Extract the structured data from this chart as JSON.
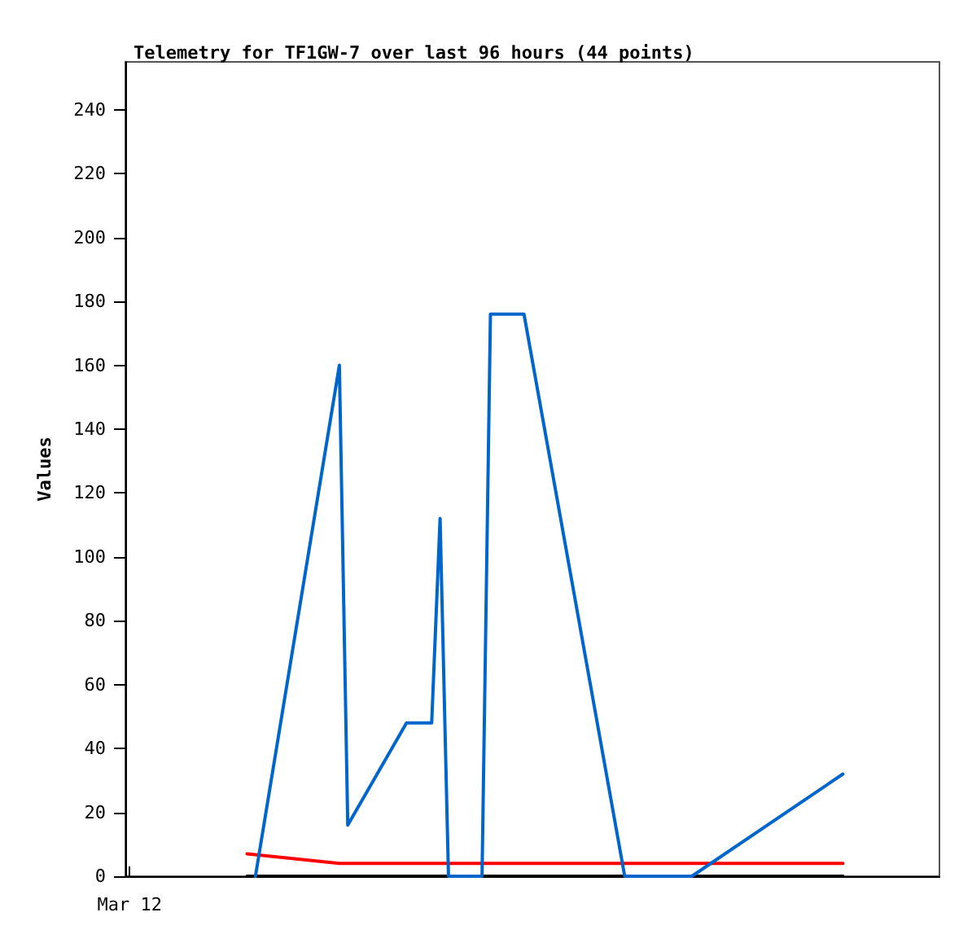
{
  "chart_data": {
    "type": "line",
    "title": "Telemetry for TF1GW-7 over last 96 hours (44 points)",
    "ylabel": "Values",
    "categories": [
      "Mar 12",
      null,
      null,
      null,
      null,
      null,
      null,
      null,
      null,
      null,
      null,
      null,
      null,
      null,
      null,
      null,
      null,
      null,
      null,
      null,
      null,
      null,
      null,
      null,
      null,
      null,
      null,
      null,
      null,
      null,
      null,
      null,
      null,
      null,
      null,
      null,
      null,
      null,
      null,
      null,
      null,
      null,
      null,
      null,
      null,
      null,
      null,
      null,
      null,
      null,
      null,
      null,
      null,
      null,
      null,
      null,
      null,
      null,
      null,
      null,
      null,
      null,
      null,
      null,
      null,
      null,
      null,
      null,
      null,
      null,
      null,
      null,
      null,
      null,
      null,
      null,
      null,
      null,
      null,
      null,
      null,
      null,
      null,
      null,
      null,
      null,
      null,
      null,
      null,
      null,
      null,
      null,
      null,
      null,
      null,
      null,
      null
    ],
    "ylim": [
      0,
      255
    ],
    "yticks": [
      0,
      20,
      40,
      60,
      80,
      100,
      120,
      140,
      160,
      180,
      200,
      220,
      240
    ],
    "marker": "none",
    "line_style": "solid",
    "series": [
      {
        "color": "#000000",
        "values": [
          null,
          null,
          null,
          null,
          null,
          null,
          null,
          null,
          null,
          null,
          null,
          null,
          null,
          null,
          0,
          null,
          null,
          null,
          null,
          null,
          null,
          null,
          null,
          null,
          null,
          null,
          null,
          null,
          null,
          null,
          null,
          null,
          null,
          null,
          null,
          null,
          null,
          null,
          null,
          null,
          null,
          null,
          null,
          null,
          null,
          null,
          null,
          null,
          null,
          null,
          null,
          null,
          null,
          null,
          null,
          null,
          null,
          null,
          null,
          null,
          null,
          null,
          null,
          null,
          null,
          null,
          null,
          null,
          null,
          null,
          null,
          null,
          null,
          null,
          null,
          null,
          null,
          null,
          null,
          null,
          null,
          null,
          null,
          null,
          null,
          0,
          null,
          null,
          null,
          null,
          null,
          null,
          null,
          null,
          null,
          null,
          null
        ]
      },
      {
        "color": "#ff0000",
        "values": [
          null,
          null,
          null,
          null,
          null,
          null,
          null,
          null,
          null,
          null,
          null,
          null,
          null,
          null,
          7,
          null,
          null,
          null,
          null,
          null,
          null,
          null,
          null,
          null,
          null,
          4,
          null,
          null,
          null,
          null,
          null,
          null,
          null,
          null,
          null,
          null,
          null,
          null,
          null,
          null,
          null,
          null,
          null,
          null,
          null,
          null,
          null,
          null,
          null,
          null,
          null,
          null,
          null,
          null,
          null,
          null,
          null,
          null,
          null,
          null,
          null,
          null,
          null,
          null,
          null,
          null,
          null,
          null,
          null,
          null,
          null,
          null,
          null,
          null,
          null,
          null,
          null,
          null,
          null,
          null,
          null,
          null,
          null,
          null,
          null,
          4,
          null,
          null,
          null,
          null,
          null,
          null,
          null,
          null,
          null,
          null,
          null
        ]
      },
      {
        "color": "#0066cc",
        "values": [
          null,
          null,
          null,
          null,
          null,
          null,
          null,
          null,
          null,
          null,
          null,
          null,
          null,
          null,
          null,
          0,
          null,
          null,
          null,
          null,
          null,
          null,
          null,
          null,
          null,
          160,
          16,
          null,
          null,
          null,
          null,
          null,
          null,
          48,
          null,
          null,
          48,
          112,
          0,
          null,
          null,
          null,
          0,
          176,
          null,
          null,
          null,
          176,
          null,
          null,
          null,
          null,
          null,
          null,
          null,
          null,
          null,
          null,
          null,
          0,
          null,
          null,
          null,
          null,
          null,
          null,
          null,
          0,
          null,
          null,
          null,
          null,
          null,
          null,
          null,
          null,
          null,
          null,
          null,
          null,
          null,
          null,
          null,
          null,
          null,
          32,
          null,
          null,
          null,
          null,
          null,
          null,
          null,
          null,
          null,
          null,
          null
        ]
      }
    ]
  }
}
